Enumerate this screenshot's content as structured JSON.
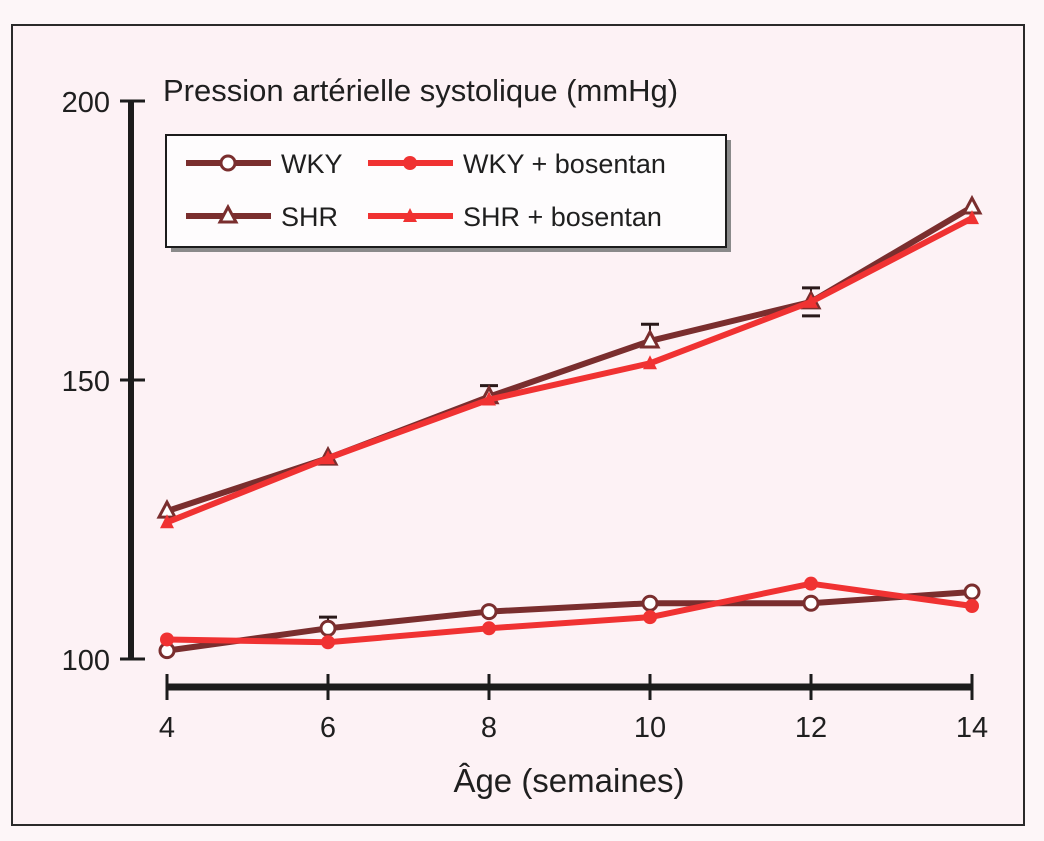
{
  "chart_data": {
    "type": "line",
    "title": "Pression artérielle systolique (mmHg)",
    "xlabel": "Âge (semaines)",
    "ylabel": "Pression artérielle systolique (mmHg)",
    "x": [
      4,
      6,
      8,
      10,
      12,
      14
    ],
    "xticks": [
      "4",
      "6",
      "8",
      "10",
      "12",
      "14"
    ],
    "yticks": [
      "100",
      "150",
      "200"
    ],
    "ytick_values": [
      100,
      150,
      200
    ],
    "xlim": [
      4,
      14
    ],
    "ylim": [
      100,
      200
    ],
    "grid": false,
    "legend_position": "top-left",
    "series": [
      {
        "name": "WKY",
        "color": "#7a2e2e",
        "marker": "open-circle",
        "values": [
          101.5,
          105.5,
          108.5,
          110,
          110,
          112
        ],
        "error_bars": [
          null,
          2,
          null,
          null,
          null,
          null
        ]
      },
      {
        "name": "WKY + bosentan",
        "color": "#f03232",
        "marker": "filled-circle",
        "values": [
          103.5,
          103,
          105.5,
          107.5,
          113.5,
          109.5
        ],
        "error_bars": [
          null,
          null,
          null,
          null,
          null,
          null
        ]
      },
      {
        "name": "SHR",
        "color": "#7a2e2e",
        "marker": "open-triangle",
        "values": [
          126.5,
          136,
          147,
          157,
          164,
          181
        ],
        "error_bars": [
          null,
          null,
          2,
          3,
          2.5,
          null
        ]
      },
      {
        "name": "SHR + bosentan",
        "color": "#f03232",
        "marker": "filled-triangle",
        "values": [
          124.5,
          136,
          146.5,
          153,
          164,
          179
        ],
        "error_bars": [
          null,
          null,
          null,
          null,
          null,
          null
        ]
      }
    ]
  }
}
